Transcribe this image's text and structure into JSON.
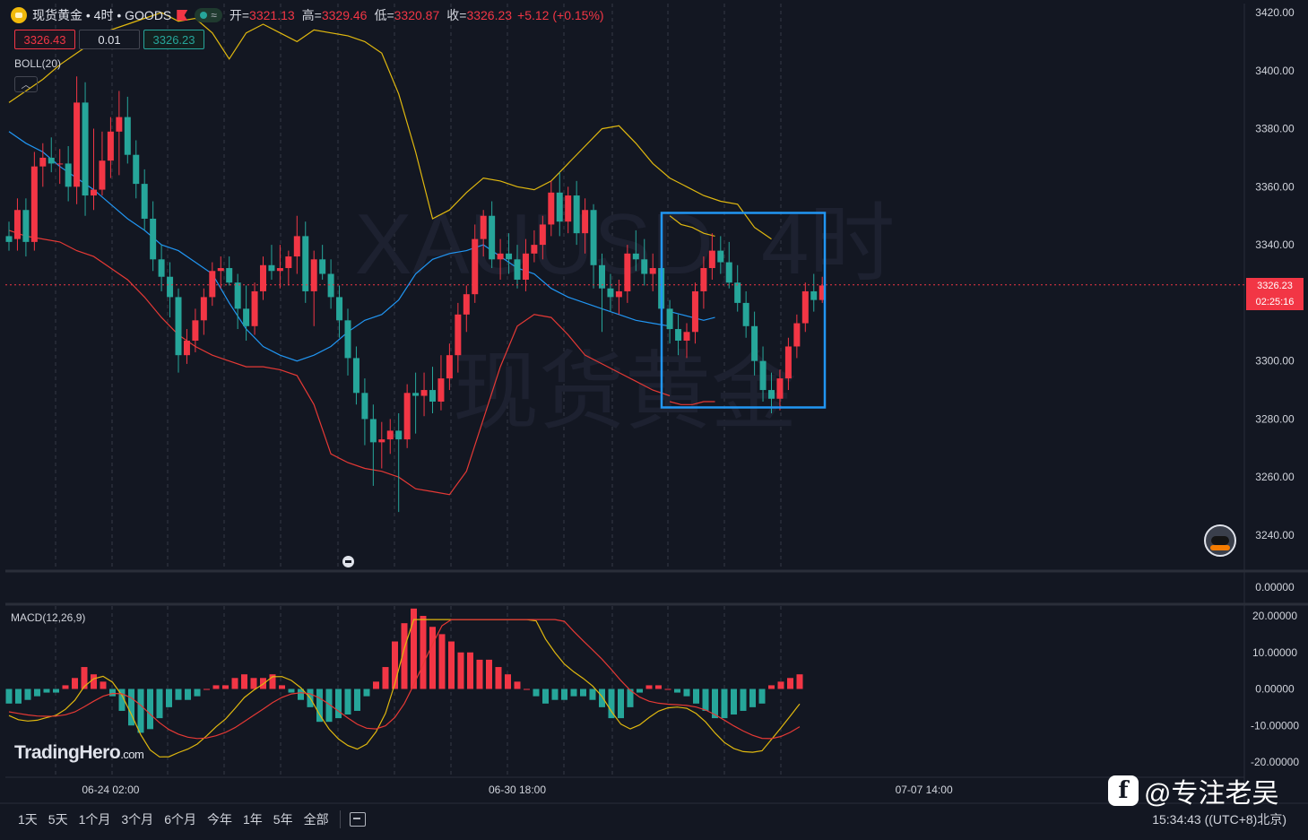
{
  "header": {
    "symbol_line": "现货黄金 • 4时 • GOODS",
    "open_label": "开=",
    "open": "3321.13",
    "high_label": "高=",
    "high": "3329.46",
    "low_label": "低=",
    "low": "3320.87",
    "close_label": "收=",
    "close": "3326.23",
    "change": "+5.12 (+0.15%)"
  },
  "order_boxes": {
    "sell": "3326.43",
    "qty": "0.01",
    "buy": "3326.23"
  },
  "indicators": {
    "boll": "BOLL(20)",
    "macd": "MACD(12,26,9)"
  },
  "watermark": {
    "line1": "XAUUSD, 4时",
    "line2": "现货黄金"
  },
  "brand": {
    "name": "TradingHero",
    "domain": ".com"
  },
  "last_price": {
    "price": "3326.23",
    "countdown": "02:25:16"
  },
  "toolbar": {
    "ranges": [
      "1天",
      "5天",
      "1个月",
      "3个月",
      "6个月",
      "今年",
      "1年",
      "5年",
      "全部"
    ]
  },
  "clock": "15:34:43 ((UTC+8)北京)",
  "author_watermark": "@专注老吴",
  "colors": {
    "up": "#f23645",
    "down": "#26a69a",
    "boll_upper": "#e0b80f",
    "boll_mid": "#2196f3",
    "boll_lower": "#e53935",
    "dif": "#e0b80f",
    "dea": "#e53935",
    "highlight": "#2196f3"
  },
  "chart_data": [
    {
      "type": "candlestick",
      "title": "XAUUSD 4H",
      "ylim": [
        3230,
        3425
      ],
      "y_ticks": [
        "3420.00",
        "3400.00",
        "3380.00",
        "3360.00",
        "3340.00",
        "3320.00",
        "3300.00",
        "3280.00",
        "3260.00",
        "3240.00"
      ],
      "x_labels": [
        "06-24 02:00",
        "06-30 18:00",
        "07-07 14:00"
      ],
      "x_label_index": [
        12,
        60,
        108
      ],
      "ohlc": [
        [
          3343,
          3348,
          3338,
          3341
        ],
        [
          3342,
          3356,
          3338,
          3352
        ],
        [
          3352,
          3356,
          3336,
          3341
        ],
        [
          3341,
          3372,
          3338,
          3367
        ],
        [
          3367,
          3375,
          3360,
          3370
        ],
        [
          3370,
          3377,
          3365,
          3368
        ],
        [
          3368,
          3373,
          3361,
          3368
        ],
        [
          3368,
          3374,
          3355,
          3360
        ],
        [
          3360,
          3398,
          3354,
          3389
        ],
        [
          3389,
          3396,
          3350,
          3357
        ],
        [
          3357,
          3380,
          3352,
          3359
        ],
        [
          3359,
          3379,
          3357,
          3369
        ],
        [
          3369,
          3384,
          3363,
          3379
        ],
        [
          3379,
          3393,
          3364,
          3384
        ],
        [
          3384,
          3391,
          3368,
          3371
        ],
        [
          3371,
          3376,
          3356,
          3361
        ],
        [
          3361,
          3366,
          3345,
          3349
        ],
        [
          3349,
          3355,
          3331,
          3335
        ],
        [
          3335,
          3340,
          3324,
          3329
        ],
        [
          3329,
          3334,
          3315,
          3322
        ],
        [
          3322,
          3325,
          3296,
          3302
        ],
        [
          3302,
          3311,
          3299,
          3307
        ],
        [
          3307,
          3318,
          3303,
          3314
        ],
        [
          3314,
          3325,
          3309,
          3322
        ],
        [
          3322,
          3334,
          3319,
          3331
        ],
        [
          3331,
          3336,
          3325,
          3332
        ],
        [
          3332,
          3336,
          3326,
          3327
        ],
        [
          3327,
          3330,
          3311,
          3318
        ],
        [
          3318,
          3326,
          3307,
          3312
        ],
        [
          3312,
          3327,
          3309,
          3324
        ],
        [
          3324,
          3336,
          3321,
          3333
        ],
        [
          3333,
          3340,
          3328,
          3331
        ],
        [
          3331,
          3340,
          3325,
          3332
        ],
        [
          3332,
          3338,
          3326,
          3336
        ],
        [
          3336,
          3350,
          3330,
          3343
        ],
        [
          3343,
          3348,
          3320,
          3324
        ],
        [
          3324,
          3338,
          3312,
          3335
        ],
        [
          3335,
          3340,
          3328,
          3330
        ],
        [
          3330,
          3335,
          3318,
          3322
        ],
        [
          3322,
          3326,
          3308,
          3314
        ],
        [
          3314,
          3318,
          3295,
          3301
        ],
        [
          3301,
          3305,
          3285,
          3289
        ],
        [
          3289,
          3294,
          3271,
          3280
        ],
        [
          3280,
          3285,
          3257,
          3272
        ],
        [
          3272,
          3279,
          3263,
          3273
        ],
        [
          3273,
          3280,
          3268,
          3276
        ],
        [
          3276,
          3282,
          3248,
          3273
        ],
        [
          3273,
          3292,
          3270,
          3289
        ],
        [
          3289,
          3296,
          3275,
          3288
        ],
        [
          3288,
          3296,
          3281,
          3290
        ],
        [
          3290,
          3298,
          3282,
          3286
        ],
        [
          3286,
          3302,
          3283,
          3294
        ],
        [
          3294,
          3306,
          3290,
          3302
        ],
        [
          3302,
          3320,
          3296,
          3316
        ],
        [
          3316,
          3326,
          3310,
          3323
        ],
        [
          3323,
          3347,
          3320,
          3342
        ],
        [
          3342,
          3352,
          3336,
          3350
        ],
        [
          3350,
          3355,
          3332,
          3335
        ],
        [
          3335,
          3342,
          3328,
          3337
        ],
        [
          3337,
          3344,
          3330,
          3335
        ],
        [
          3335,
          3340,
          3325,
          3328
        ],
        [
          3328,
          3342,
          3324,
          3337
        ],
        [
          3337,
          3345,
          3334,
          3340
        ],
        [
          3340,
          3350,
          3335,
          3347
        ],
        [
          3347,
          3362,
          3343,
          3358
        ],
        [
          3358,
          3365,
          3343,
          3348
        ],
        [
          3348,
          3360,
          3344,
          3357
        ],
        [
          3357,
          3362,
          3340,
          3344
        ],
        [
          3344,
          3356,
          3337,
          3352
        ],
        [
          3352,
          3354,
          3325,
          3333
        ],
        [
          3333,
          3337,
          3310,
          3325
        ],
        [
          3325,
          3330,
          3317,
          3322
        ],
        [
          3322,
          3328,
          3316,
          3324
        ],
        [
          3324,
          3340,
          3320,
          3337
        ],
        [
          3337,
          3345,
          3331,
          3335
        ],
        [
          3335,
          3342,
          3326,
          3330
        ],
        [
          3330,
          3337,
          3324,
          3332
        ],
        [
          3332,
          3336,
          3316,
          3318
        ],
        [
          3318,
          3321,
          3306,
          3311
        ],
        [
          3311,
          3316,
          3302,
          3307
        ],
        [
          3307,
          3313,
          3301,
          3310
        ],
        [
          3310,
          3327,
          3306,
          3324
        ],
        [
          3324,
          3336,
          3318,
          3332
        ],
        [
          3332,
          3344,
          3328,
          3338
        ],
        [
          3338,
          3343,
          3330,
          3334
        ],
        [
          3334,
          3341,
          3325,
          3327
        ],
        [
          3327,
          3333,
          3317,
          3320
        ],
        [
          3320,
          3324,
          3308,
          3312
        ],
        [
          3312,
          3317,
          3295,
          3300
        ],
        [
          3300,
          3305,
          3286,
          3290
        ],
        [
          3290,
          3296,
          3282,
          3287
        ],
        [
          3287,
          3297,
          3283,
          3294
        ],
        [
          3294,
          3308,
          3290,
          3305
        ],
        [
          3305,
          3316,
          3301,
          3313
        ],
        [
          3313,
          3327,
          3310,
          3324
        ],
        [
          3324,
          3330,
          3317,
          3321
        ],
        [
          3321,
          3329,
          3320,
          3326
        ]
      ],
      "boll_upper": [
        3389,
        3393,
        3397,
        3402,
        3406,
        3410,
        3414,
        3416,
        3418,
        3420,
        3417,
        3418,
        3413,
        3404,
        3413,
        3416,
        3413,
        3410,
        3414,
        3413,
        3412,
        3410,
        3406,
        3392,
        3372,
        3349,
        3352,
        3358,
        3363,
        3362,
        3360,
        3359,
        3362,
        3368,
        3374,
        3380,
        3381,
        3375,
        3368,
        3363,
        3360,
        3357,
        3355,
        3354,
        3346,
        3342
      ],
      "boll_mid": [
        3379,
        3375,
        3372,
        3367,
        3363,
        3359,
        3354,
        3349,
        3345,
        3340,
        3338,
        3334,
        3330,
        3320,
        3311,
        3305,
        3302,
        3300,
        3302,
        3305,
        3310,
        3314,
        3316,
        3321,
        3330,
        3335,
        3337,
        3338,
        3340,
        3336,
        3332,
        3330,
        3325,
        3322,
        3320,
        3318,
        3316,
        3314,
        3313,
        3312
      ],
      "boll_lower": [
        3345,
        3343,
        3342,
        3341,
        3338,
        3336,
        3332,
        3328,
        3322,
        3315,
        3309,
        3305,
        3302,
        3300,
        3298,
        3298,
        3297,
        3295,
        3285,
        3268,
        3265,
        3263,
        3262,
        3260,
        3256,
        3255,
        3254,
        3262,
        3280,
        3298,
        3312,
        3316,
        3315,
        3309,
        3302,
        3299,
        3296,
        3293,
        3290,
        3288
      ],
      "tail_upper": [
        3350,
        3347,
        3346,
        3344,
        3343
      ],
      "tail_mid": [
        3317,
        3316,
        3315,
        3314,
        3315
      ],
      "tail_lower": [
        3286,
        3285,
        3285,
        3286,
        3286
      ],
      "highlight_box": {
        "from_index": 116,
        "to_index": 145,
        "top": 3351,
        "bottom": 3284
      }
    },
    {
      "type": "macd",
      "ylim": [
        -21,
        21
      ],
      "y_ticks": [
        "20.00000",
        "10.00000",
        "0.00000",
        "-10.00000",
        "-20.00000"
      ],
      "histogram": [
        -4,
        -4,
        -3,
        -2,
        -1,
        -1,
        1,
        3,
        6,
        4,
        2,
        -2,
        -6,
        -10,
        -12,
        -11,
        -8,
        -5,
        -3,
        -3,
        -2,
        0,
        1,
        1,
        3,
        4,
        3,
        3,
        4,
        1,
        -1,
        -3,
        -5,
        -9,
        -9,
        -8,
        -7,
        -6,
        -2,
        2,
        6,
        13,
        18,
        22,
        20,
        17,
        15,
        13,
        10,
        10,
        8,
        8,
        6,
        4,
        2,
        0,
        -2,
        -4,
        -3,
        -3,
        -2,
        -2,
        -3,
        -5,
        -8,
        -8,
        -5,
        -1,
        1,
        1,
        0,
        -1,
        -2,
        -4,
        -6,
        -8,
        -8,
        -7,
        -6,
        -5,
        -4,
        1,
        2,
        3,
        4
      ]
    }
  ]
}
